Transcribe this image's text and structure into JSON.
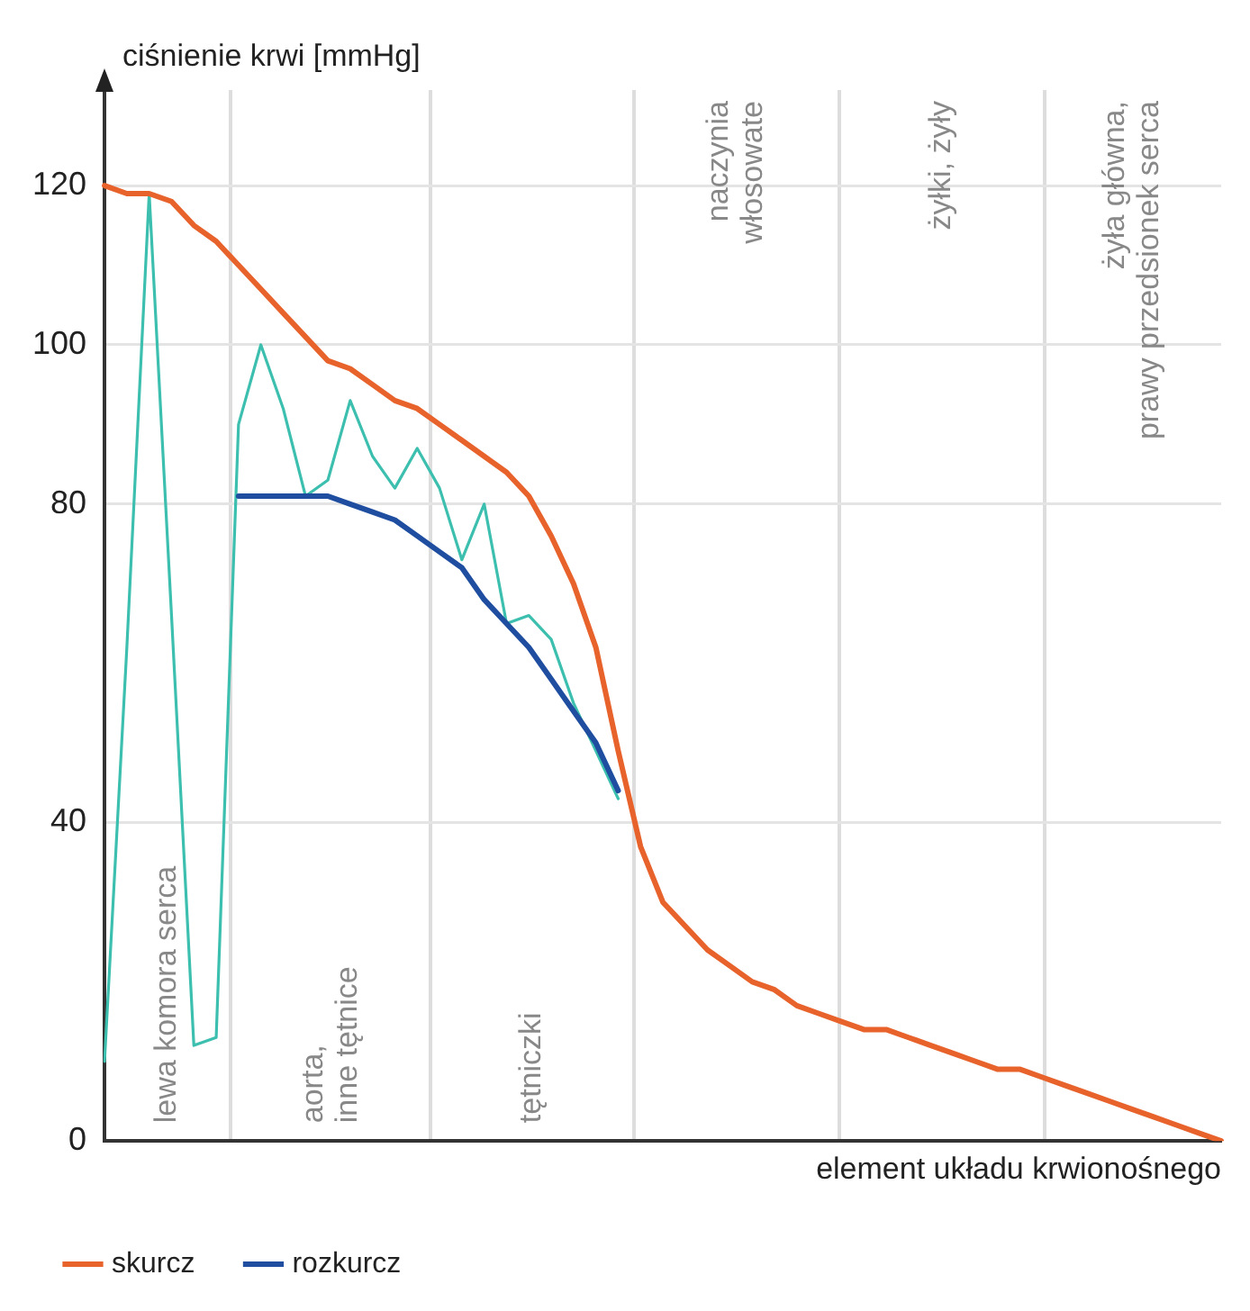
{
  "chart_data": {
    "type": "line",
    "ylabel": "ciśnienie krwi [mmHg]",
    "xlabel": "element układu krwionośnego",
    "categories": [
      null,
      null,
      null,
      null,
      null,
      null,
      null,
      null,
      null,
      null,
      null,
      null,
      null,
      null,
      null,
      null,
      null,
      null,
      null,
      null,
      null,
      null,
      null,
      null,
      null,
      null,
      null,
      null,
      null,
      null,
      null,
      null,
      null,
      null,
      null,
      null,
      null,
      null,
      null,
      null,
      null,
      null,
      null,
      null,
      null,
      null,
      null,
      null,
      null,
      null,
      null
    ],
    "ylim": [
      0,
      132
    ],
    "yticks": [
      0,
      40,
      80,
      100,
      120
    ],
    "tick_labels": "y",
    "grid": "y",
    "legend": "bottom left",
    "marker": "none",
    "line_style": "solid",
    "series": [
      {
        "name": "skurcz",
        "color": "#e8622c",
        "values": [
          120,
          119,
          119,
          118,
          115,
          113,
          110,
          107,
          104,
          101,
          98,
          97,
          95,
          93,
          92,
          90,
          88,
          86,
          84,
          81,
          76,
          70,
          62,
          49,
          37,
          30,
          27,
          24,
          22,
          20,
          19,
          17,
          16,
          15,
          14,
          14,
          13,
          12,
          11,
          10,
          9,
          9,
          8,
          7,
          6,
          5,
          4,
          3,
          2,
          1,
          0
        ]
      },
      {
        "name": "rozkurcz",
        "color": "#1f4ea0",
        "values": [
          null,
          null,
          null,
          null,
          null,
          null,
          81,
          81,
          81,
          81,
          81,
          80,
          79,
          78,
          76,
          74,
          72,
          68,
          65,
          62,
          58,
          54,
          50,
          44,
          null,
          null,
          null,
          null,
          null,
          null,
          null,
          null,
          null,
          null,
          null,
          null,
          null,
          null,
          null,
          null,
          null,
          null,
          null,
          null,
          null,
          null,
          null,
          null,
          null,
          null,
          null
        ]
      },
      {
        "color": "#3cbfae",
        "values": [
          10,
          62,
          119,
          66,
          12,
          13,
          90,
          100,
          92,
          81,
          83,
          93,
          86,
          82,
          87,
          82,
          73,
          80,
          65,
          66,
          63,
          55,
          49,
          43,
          null,
          null,
          null,
          null,
          null,
          null,
          null,
          null,
          null,
          null,
          null,
          null,
          null,
          null,
          null,
          null,
          null,
          null,
          null,
          null,
          null,
          null,
          null,
          null,
          null,
          null,
          null
        ]
      }
    ],
    "annotations": [
      "lewa komora serca",
      "aorta,\ninne tętnice",
      "tętniczki",
      "naczynia\nwłosowate",
      "żyłki, żyły",
      "żyła główna,\nprawy przedsionek serca"
    ]
  }
}
